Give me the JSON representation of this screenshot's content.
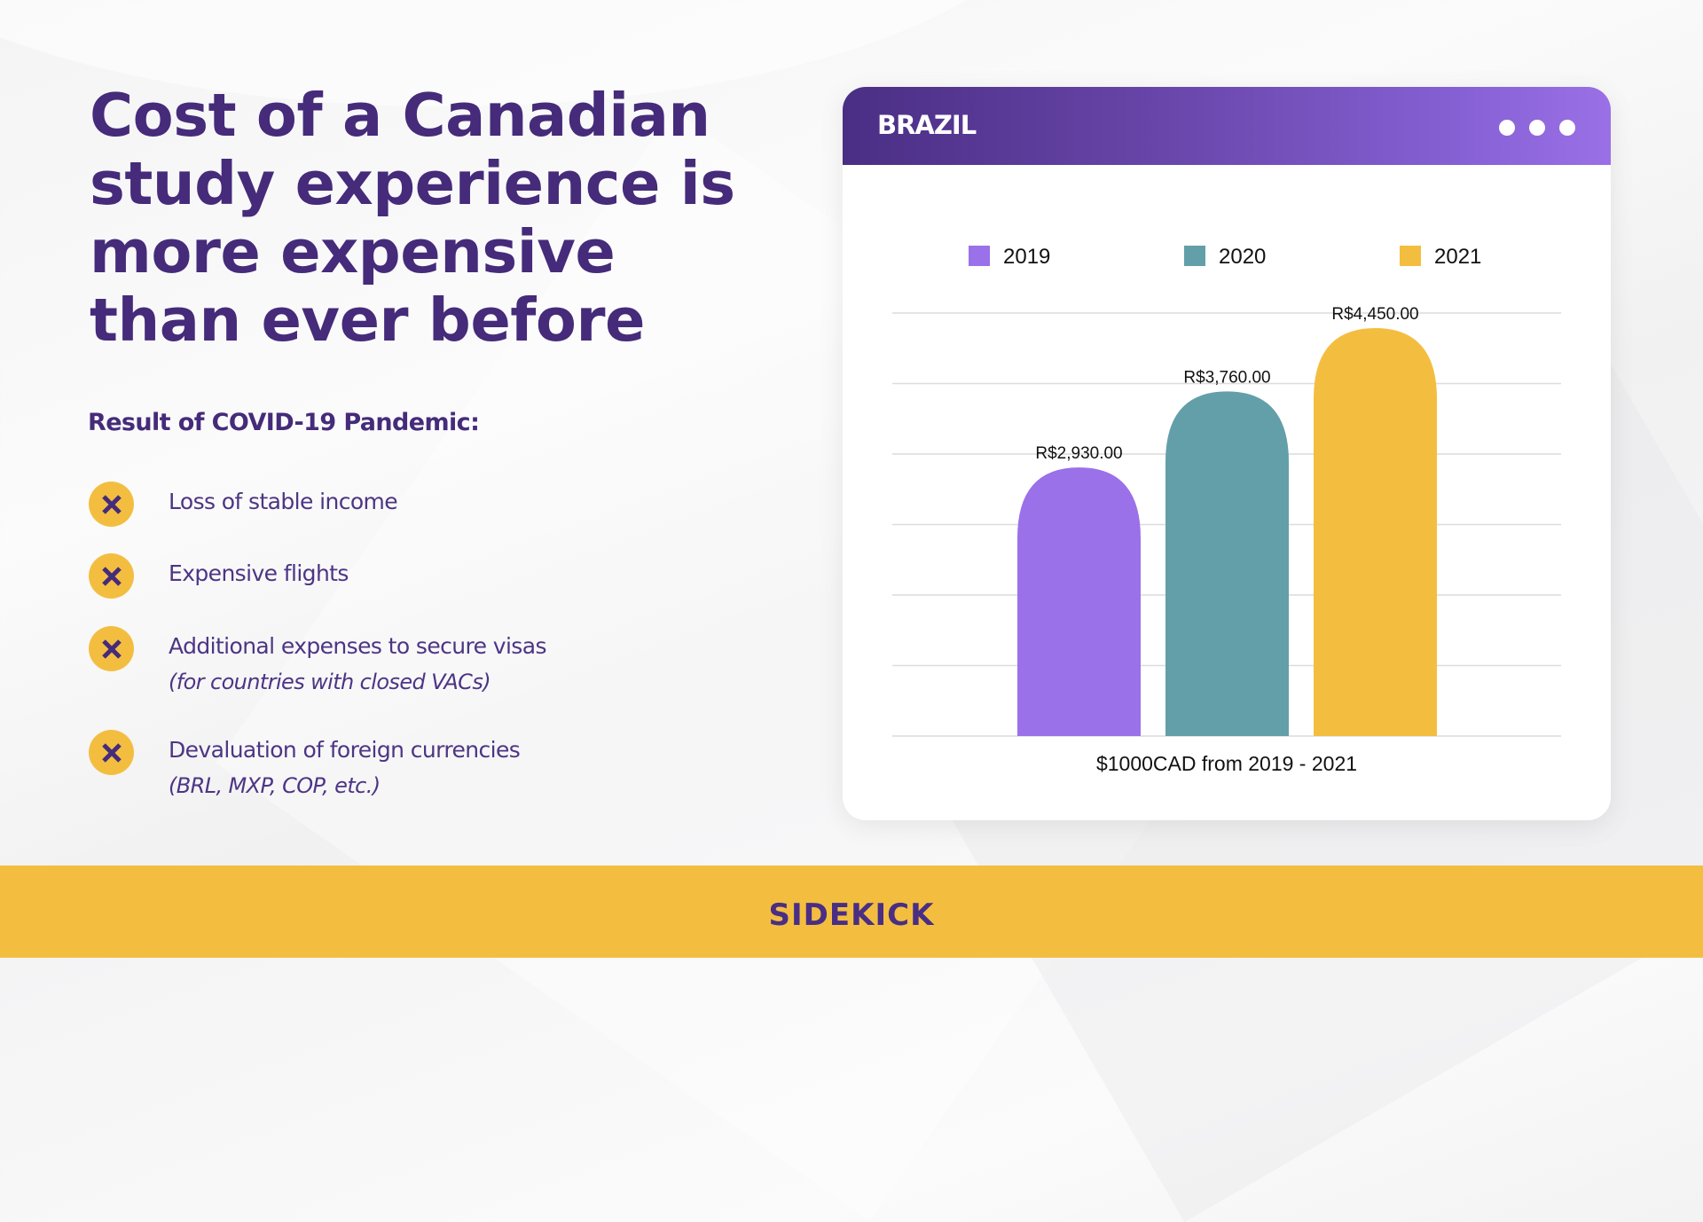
{
  "headline": {
    "lines": [
      "Cost of a Canadian",
      "study experience is",
      "more expensive",
      "than ever before"
    ]
  },
  "subheading": "Result of COVID-19 Pandemic:",
  "bullets": [
    {
      "icon": "x-icon",
      "text": "Loss of stable income",
      "note": ""
    },
    {
      "icon": "x-icon",
      "text": "Expensive flights",
      "note": ""
    },
    {
      "icon": "x-icon",
      "text": "Additional expenses to secure visas",
      "note": "(for countries with closed VACs)"
    },
    {
      "icon": "x-icon",
      "text": "Devaluation of foreign currencies",
      "note": "(BRL, MXP, COP, etc.)"
    }
  ],
  "card": {
    "title": "BRAZIL",
    "menu_icon": "more-dots-icon"
  },
  "colors": {
    "brand_purple": "#452b7a",
    "brand_yellow": "#f3be40",
    "header_gradient_start": "#4a2e84",
    "header_gradient_end": "#9b70e6"
  },
  "footer": {
    "logo_text": "SIDEKICK"
  },
  "chart_data": {
    "type": "bar",
    "title": "BRAZIL",
    "categories": [
      "2019",
      "2020",
      "2021"
    ],
    "series": [
      {
        "name": "2019",
        "color": "#9a71e8",
        "values": [
          2930
        ]
      },
      {
        "name": "2020",
        "color": "#639fa8",
        "values": [
          3760
        ]
      },
      {
        "name": "2021",
        "color": "#f3be40",
        "values": [
          4450
        ]
      }
    ],
    "values": [
      2930,
      3760,
      4450
    ],
    "data_labels": [
      "R$2,930.00",
      "R$3,760.00",
      "R$4,450.00"
    ],
    "xlabel": "$1000CAD from 2019 - 2021",
    "ylabel": "",
    "ylim": [
      0,
      4615
    ],
    "grid": true,
    "gridline_count": 7,
    "legend_position": "top",
    "legend": [
      "2019",
      "2020",
      "2021"
    ]
  }
}
